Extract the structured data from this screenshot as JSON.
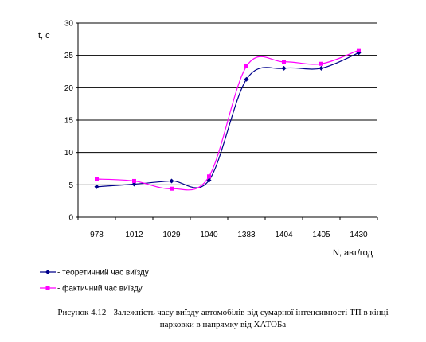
{
  "chart_data": {
    "type": "line",
    "categories": [
      "978",
      "1012",
      "1029",
      "1040",
      "1383",
      "1404",
      "1405",
      "1430"
    ],
    "series": [
      {
        "name": "теоретичний час виїзду",
        "values": [
          4.7,
          5.1,
          5.6,
          5.7,
          21.3,
          23.0,
          23.0,
          25.4
        ],
        "color": "#00008b",
        "marker": "diamond"
      },
      {
        "name": "фактичний час виїзду",
        "values": [
          5.9,
          5.6,
          4.4,
          6.3,
          23.3,
          24.0,
          23.7,
          25.8
        ],
        "color": "#ff00ff",
        "marker": "square"
      }
    ],
    "yticks": [
      0,
      5,
      10,
      15,
      20,
      25,
      30
    ],
    "ylim": [
      0,
      30
    ],
    "ylabel": "t, c",
    "xlabel": "N, авт/год",
    "grid": true,
    "legend_position": "bottom-left"
  },
  "caption": {
    "line1": "Рисунок 4.12 - Залежність часу виїзду автомобілів від сумарної інтенсивності ТП в кінці",
    "line2": "парковки в напрямку від ХАТОБа"
  }
}
